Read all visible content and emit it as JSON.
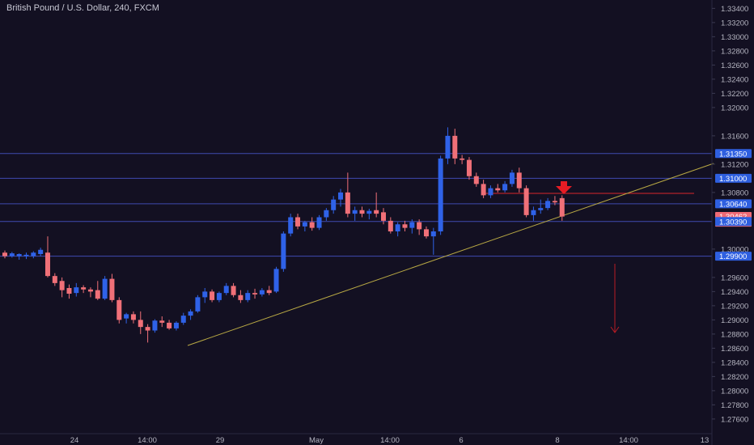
{
  "header": {
    "title": "British Pound / U.S. Dollar, 240, FXCM"
  },
  "colors": {
    "background": "#131022",
    "axis_text": "#b4b4c0",
    "bull": "#2f62e8",
    "bear": "#f07078",
    "hline": "#3f4ab0",
    "trendline": "#b8a844",
    "resistance": "#d8262c",
    "arrow": "#e81c24",
    "down_arrow": "#b81c24",
    "label_blue": "#2e5fe0",
    "label_red": "#ef6a75"
  },
  "chart_data": {
    "type": "candlestick",
    "title": "British Pound / U.S. Dollar, 240, FXCM",
    "ylim": [
      1.2745,
      1.3345
    ],
    "y_ticks": [
      "1.33400",
      "1.33200",
      "1.33000",
      "1.32800",
      "1.32600",
      "1.32400",
      "1.32200",
      "1.32000",
      "1.31600",
      "1.31200",
      "1.30800",
      "1.30000",
      "1.29600",
      "1.29400",
      "1.29200",
      "1.29000",
      "1.28800",
      "1.28600",
      "1.28400",
      "1.28200",
      "1.28000",
      "1.27800",
      "1.27600"
    ],
    "x_ticks": [
      "24",
      "14:00",
      "29",
      "May",
      "14:00",
      "6",
      "8",
      "14:00",
      "13"
    ],
    "grid": false,
    "candles": [
      {
        "o": 1.2995,
        "h": 1.2998,
        "l": 1.2987,
        "c": 1.299
      },
      {
        "o": 1.299,
        "h": 1.2996,
        "l": 1.2988,
        "c": 1.2994
      },
      {
        "o": 1.299,
        "h": 1.2994,
        "l": 1.2985,
        "c": 1.2993
      },
      {
        "o": 1.299,
        "h": 1.2995,
        "l": 1.2986,
        "c": 1.2992
      },
      {
        "o": 1.299,
        "h": 1.2997,
        "l": 1.2987,
        "c": 1.2995
      },
      {
        "o": 1.2993,
        "h": 1.3002,
        "l": 1.299,
        "c": 1.2999
      },
      {
        "o": 1.2995,
        "h": 1.3018,
        "l": 1.296,
        "c": 1.2962
      },
      {
        "o": 1.2962,
        "h": 1.2966,
        "l": 1.2948,
        "c": 1.2952
      },
      {
        "o": 1.2955,
        "h": 1.296,
        "l": 1.2932,
        "c": 1.2942
      },
      {
        "o": 1.2945,
        "h": 1.295,
        "l": 1.293,
        "c": 1.2937
      },
      {
        "o": 1.2938,
        "h": 1.2952,
        "l": 1.2933,
        "c": 1.2946
      },
      {
        "o": 1.2946,
        "h": 1.2949,
        "l": 1.2938,
        "c": 1.2943
      },
      {
        "o": 1.2943,
        "h": 1.2946,
        "l": 1.2932,
        "c": 1.294
      },
      {
        "o": 1.2942,
        "h": 1.2955,
        "l": 1.2928,
        "c": 1.293
      },
      {
        "o": 1.293,
        "h": 1.2962,
        "l": 1.2928,
        "c": 1.2958
      },
      {
        "o": 1.2958,
        "h": 1.2965,
        "l": 1.2925,
        "c": 1.2928
      },
      {
        "o": 1.2928,
        "h": 1.2932,
        "l": 1.2895,
        "c": 1.29
      },
      {
        "o": 1.2902,
        "h": 1.291,
        "l": 1.2895,
        "c": 1.2908
      },
      {
        "o": 1.2908,
        "h": 1.2912,
        "l": 1.2895,
        "c": 1.29
      },
      {
        "o": 1.29,
        "h": 1.2912,
        "l": 1.288,
        "c": 1.289
      },
      {
        "o": 1.289,
        "h": 1.2894,
        "l": 1.2868,
        "c": 1.2885
      },
      {
        "o": 1.2885,
        "h": 1.2901,
        "l": 1.2882,
        "c": 1.2899
      },
      {
        "o": 1.2899,
        "h": 1.2905,
        "l": 1.289,
        "c": 1.2896
      },
      {
        "o": 1.2896,
        "h": 1.29,
        "l": 1.2886,
        "c": 1.2888
      },
      {
        "o": 1.2888,
        "h": 1.2898,
        "l": 1.2885,
        "c": 1.2896
      },
      {
        "o": 1.2896,
        "h": 1.291,
        "l": 1.2893,
        "c": 1.2906
      },
      {
        "o": 1.2906,
        "h": 1.2915,
        "l": 1.29,
        "c": 1.2912
      },
      {
        "o": 1.2912,
        "h": 1.2935,
        "l": 1.291,
        "c": 1.2932
      },
      {
        "o": 1.2932,
        "h": 1.2945,
        "l": 1.2924,
        "c": 1.294
      },
      {
        "o": 1.294,
        "h": 1.2943,
        "l": 1.2925,
        "c": 1.2928
      },
      {
        "o": 1.2928,
        "h": 1.294,
        "l": 1.2925,
        "c": 1.2938
      },
      {
        "o": 1.2938,
        "h": 1.2952,
        "l": 1.2935,
        "c": 1.2948
      },
      {
        "o": 1.2948,
        "h": 1.2952,
        "l": 1.2932,
        "c": 1.2935
      },
      {
        "o": 1.2935,
        "h": 1.2942,
        "l": 1.2924,
        "c": 1.2928
      },
      {
        "o": 1.2928,
        "h": 1.2942,
        "l": 1.2925,
        "c": 1.2938
      },
      {
        "o": 1.2938,
        "h": 1.2944,
        "l": 1.293,
        "c": 1.2936
      },
      {
        "o": 1.2936,
        "h": 1.2945,
        "l": 1.2933,
        "c": 1.2942
      },
      {
        "o": 1.2942,
        "h": 1.2948,
        "l": 1.2935,
        "c": 1.2938
      },
      {
        "o": 1.294,
        "h": 1.2975,
        "l": 1.2938,
        "c": 1.2972
      },
      {
        "o": 1.2972,
        "h": 1.3025,
        "l": 1.2968,
        "c": 1.3022
      },
      {
        "o": 1.3022,
        "h": 1.305,
        "l": 1.3018,
        "c": 1.3045
      },
      {
        "o": 1.3045,
        "h": 1.305,
        "l": 1.3028,
        "c": 1.3032
      },
      {
        "o": 1.3032,
        "h": 1.304,
        "l": 1.3025,
        "c": 1.3038
      },
      {
        "o": 1.3038,
        "h": 1.3045,
        "l": 1.3026,
        "c": 1.303
      },
      {
        "o": 1.303,
        "h": 1.3048,
        "l": 1.3027,
        "c": 1.3045
      },
      {
        "o": 1.3045,
        "h": 1.3058,
        "l": 1.304,
        "c": 1.3055
      },
      {
        "o": 1.3055,
        "h": 1.3075,
        "l": 1.305,
        "c": 1.307
      },
      {
        "o": 1.307,
        "h": 1.3085,
        "l": 1.306,
        "c": 1.308
      },
      {
        "o": 1.308,
        "h": 1.3108,
        "l": 1.3045,
        "c": 1.305
      },
      {
        "o": 1.305,
        "h": 1.306,
        "l": 1.304,
        "c": 1.3055
      },
      {
        "o": 1.3055,
        "h": 1.306,
        "l": 1.3045,
        "c": 1.305
      },
      {
        "o": 1.305,
        "h": 1.3057,
        "l": 1.3042,
        "c": 1.3054
      },
      {
        "o": 1.3055,
        "h": 1.308,
        "l": 1.3045,
        "c": 1.305
      },
      {
        "o": 1.3052,
        "h": 1.3058,
        "l": 1.3035,
        "c": 1.304
      },
      {
        "o": 1.304,
        "h": 1.3045,
        "l": 1.3022,
        "c": 1.3025
      },
      {
        "o": 1.3025,
        "h": 1.3038,
        "l": 1.3018,
        "c": 1.3035
      },
      {
        "o": 1.3035,
        "h": 1.304,
        "l": 1.3025,
        "c": 1.303
      },
      {
        "o": 1.303,
        "h": 1.3042,
        "l": 1.3022,
        "c": 1.3038
      },
      {
        "o": 1.3038,
        "h": 1.3042,
        "l": 1.302,
        "c": 1.3028
      },
      {
        "o": 1.3028,
        "h": 1.3032,
        "l": 1.3015,
        "c": 1.3018
      },
      {
        "o": 1.3018,
        "h": 1.303,
        "l": 1.2992,
        "c": 1.3025
      },
      {
        "o": 1.3025,
        "h": 1.3132,
        "l": 1.302,
        "c": 1.3128
      },
      {
        "o": 1.3128,
        "h": 1.3172,
        "l": 1.312,
        "c": 1.316
      },
      {
        "o": 1.316,
        "h": 1.317,
        "l": 1.312,
        "c": 1.3128
      },
      {
        "o": 1.3128,
        "h": 1.3133,
        "l": 1.312,
        "c": 1.3126
      },
      {
        "o": 1.3126,
        "h": 1.313,
        "l": 1.3098,
        "c": 1.3103
      },
      {
        "o": 1.3103,
        "h": 1.3108,
        "l": 1.3088,
        "c": 1.3092
      },
      {
        "o": 1.3092,
        "h": 1.3098,
        "l": 1.3072,
        "c": 1.3076
      },
      {
        "o": 1.3076,
        "h": 1.309,
        "l": 1.3072,
        "c": 1.3086
      },
      {
        "o": 1.3086,
        "h": 1.3092,
        "l": 1.308,
        "c": 1.3083
      },
      {
        "o": 1.3083,
        "h": 1.3096,
        "l": 1.308,
        "c": 1.3092
      },
      {
        "o": 1.3092,
        "h": 1.3112,
        "l": 1.3088,
        "c": 1.3108
      },
      {
        "o": 1.3108,
        "h": 1.3115,
        "l": 1.308,
        "c": 1.3086
      },
      {
        "o": 1.3086,
        "h": 1.309,
        "l": 1.3045,
        "c": 1.3048
      },
      {
        "o": 1.3048,
        "h": 1.306,
        "l": 1.304,
        "c": 1.3055
      },
      {
        "o": 1.3055,
        "h": 1.307,
        "l": 1.305,
        "c": 1.3058
      },
      {
        "o": 1.3058,
        "h": 1.3072,
        "l": 1.3055,
        "c": 1.3068
      },
      {
        "o": 1.3068,
        "h": 1.3075,
        "l": 1.3062,
        "c": 1.3066
      },
      {
        "o": 1.3072,
        "h": 1.3076,
        "l": 1.304,
        "c": 1.3046
      }
    ],
    "horizontal_lines": [
      1.3135,
      1.31,
      1.3064,
      1.3039,
      1.299
    ],
    "price_labels": [
      {
        "text": "1.31350",
        "value": 1.3135,
        "color": "blue"
      },
      {
        "text": "1.31000",
        "value": 1.31,
        "color": "blue"
      },
      {
        "text": "1.30640",
        "value": 1.3064,
        "color": "blue"
      },
      {
        "text": "1.30462",
        "value": 1.30462,
        "color": "red"
      },
      {
        "text": "01:30:17",
        "value": 1.3038,
        "color": "red"
      },
      {
        "text": "1.30390",
        "value": 1.3039,
        "color": "blue"
      },
      {
        "text": "1.29900",
        "value": 1.299,
        "color": "blue"
      }
    ]
  }
}
